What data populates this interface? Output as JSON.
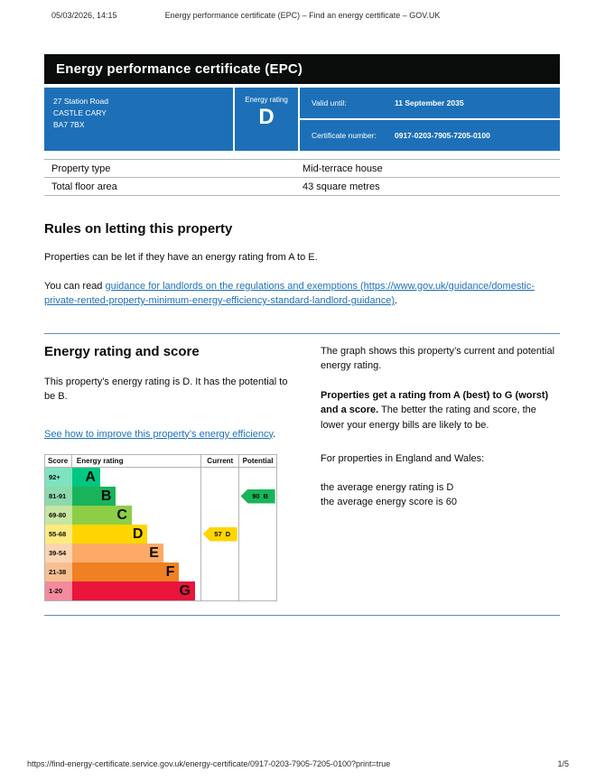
{
  "meta": {
    "datetime": "05/03/2026, 14:15",
    "doc_title": "Energy performance certificate (EPC) – Find an energy certificate – GOV.UK",
    "footer_url": "https://find-energy-certificate.service.gov.uk/energy-certificate/0917-0203-7905-7205-0100?print=true",
    "page_indicator": "1/5"
  },
  "banner": {
    "title": "Energy performance certificate (EPC)"
  },
  "summary_panel": {
    "address_lines": [
      "27 Station Road",
      "CASTLE CARY",
      "BA7 7BX"
    ],
    "energy_rating_label": "Energy rating",
    "energy_rating_value": "D",
    "valid_until_label": "Valid until:",
    "valid_until_value": "11 September 2035",
    "certificate_number_label": "Certificate number:",
    "certificate_number_value": "0917-0203-7905-7205-0100"
  },
  "property_table": {
    "rows": [
      {
        "label": "Property type",
        "value": "Mid-terrace house"
      },
      {
        "label": "Total floor area",
        "value": "43 square metres"
      }
    ]
  },
  "letting_rules": {
    "heading": "Rules on letting this property",
    "paragraph": "Properties can be let if they have an energy rating from A to E.",
    "read_prefix": "You can read ",
    "link_text": "guidance for landlords on the regulations and exemptions (https://www.gov.uk/guidance/domestic-private-rented-property-minimum-energy-efficiency-standard-landlord-guidance)",
    "read_suffix": "."
  },
  "rating_section": {
    "heading": "Energy rating and score",
    "paragraph": "This property’s energy rating is D. It has the potential to be B.",
    "improve_link": "See how to improve this property’s energy efficiency",
    "improve_suffix": ".",
    "right_para1": "The graph shows this property’s current and potential energy rating.",
    "right_para2_bold": "Properties get a rating from A (best) to G (worst) and a score.",
    "right_para2_rest": " The better the rating and score, the lower your energy bills are likely to be.",
    "right_para3": "For properties in England and Wales:",
    "right_para4_line1": "the average energy rating is D",
    "right_para4_line2": "the average energy score is 60"
  },
  "chart_data": {
    "type": "epc-rating-bands",
    "columns": [
      "Score",
      "Energy rating",
      "Current",
      "Potential"
    ],
    "bands": [
      {
        "range": "92+",
        "letter": "A",
        "color": "#00c781",
        "tint": "#80e3c0"
      },
      {
        "range": "81-91",
        "letter": "B",
        "color": "#19b459",
        "tint": "#8cd9ac"
      },
      {
        "range": "69-80",
        "letter": "C",
        "color": "#8dce46",
        "tint": "#c6e6a2"
      },
      {
        "range": "55-68",
        "letter": "D",
        "color": "#ffd500",
        "tint": "#ffea80"
      },
      {
        "range": "39-54",
        "letter": "E",
        "color": "#fcaa65",
        "tint": "#fdd4b2"
      },
      {
        "range": "21-38",
        "letter": "F",
        "color": "#ef8023",
        "tint": "#f7bf91"
      },
      {
        "range": "1-20",
        "letter": "G",
        "color": "#e9153b",
        "tint": "#f48a9d"
      }
    ],
    "current": {
      "score": "57",
      "letter": "D",
      "color": "#ffd500"
    },
    "potential": {
      "score": "90",
      "letter": "B",
      "color": "#19b459"
    }
  },
  "colors": {
    "banner_bg": "#0b0c0c",
    "panel_blue": "#1d70b8",
    "link_blue": "#1d70b8",
    "rule_blue": "#5c8fb8",
    "table_border": "#b1b4b6"
  }
}
